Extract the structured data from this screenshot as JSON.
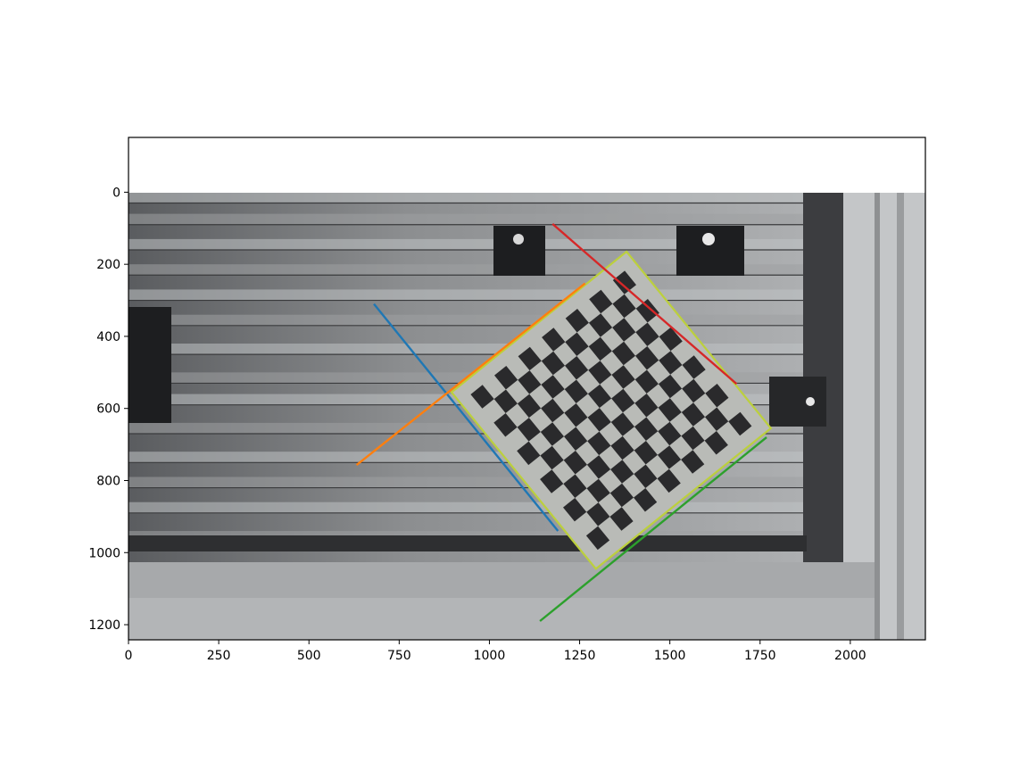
{
  "chart_data": {
    "type": "scatter",
    "title": "",
    "xlabel": "",
    "ylabel": "",
    "xlim": [
      0,
      2208
    ],
    "ylim": [
      1242,
      -152
    ],
    "image_extent": {
      "width": 2208,
      "height": 1242
    },
    "xticks": [
      0,
      250,
      500,
      750,
      1000,
      1250,
      1500,
      1750,
      2000
    ],
    "yticks": [
      0,
      200,
      400,
      600,
      800,
      1000,
      1200
    ],
    "xtick_labels": [
      "0",
      "250",
      "500",
      "750",
      "1000",
      "1250",
      "1500",
      "1750",
      "2000"
    ],
    "ytick_labels": [
      "0",
      "200",
      "400",
      "600",
      "800",
      "1000",
      "1200"
    ],
    "grid": false,
    "background_image": "grayscale photo of aluminium profile rails with a tilted checkerboard calibration target",
    "board": {
      "corners": [
        [
          895,
          555
        ],
        [
          1380,
          165
        ],
        [
          1780,
          655
        ],
        [
          1295,
          1045
        ]
      ],
      "outline_color": "#bcd03c",
      "face_color": "#b9bbb7",
      "square_color": "#2a2a2c",
      "rows": 11,
      "cols": 13
    },
    "series": [
      {
        "color": "#1f77b4",
        "x": [
          680,
          1190
        ],
        "y": [
          310,
          940
        ]
      },
      {
        "color": "#ff7f0e",
        "x": [
          632,
          1265
        ],
        "y": [
          757,
          253
        ]
      },
      {
        "color": "#2ca02c",
        "x": [
          1140,
          1768
        ],
        "y": [
          1190,
          680
        ]
      },
      {
        "color": "#d62728",
        "x": [
          1175,
          1685
        ],
        "y": [
          88,
          532
        ]
      }
    ]
  }
}
